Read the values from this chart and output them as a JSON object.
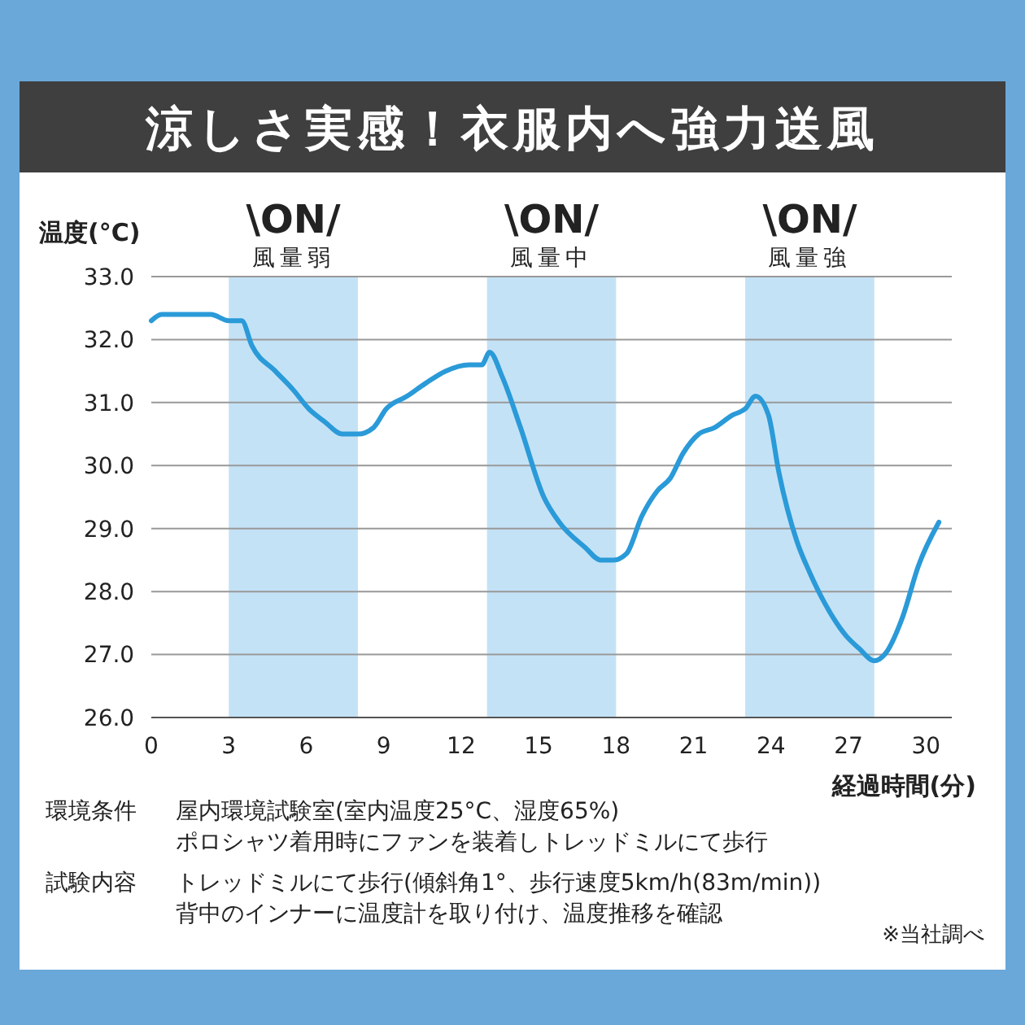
{
  "chart_data": {
    "type": "line",
    "title": "涼しさ実感！衣服内へ強力送風",
    "ylabel": "温度(°C)",
    "xlabel": "経過時間(分)",
    "x": [
      0,
      0.4,
      2.3,
      3.0,
      3.5,
      3.9,
      4.8,
      5.5,
      6.1,
      6.7,
      7.4,
      8.0,
      8.6,
      9.1,
      9.9,
      10.6,
      11.4,
      12.3,
      12.8,
      13.1,
      13.6,
      14.3,
      15.2,
      15.8,
      16.8,
      17.4,
      17.9,
      18.4,
      19.0,
      19.6,
      20.1,
      20.6,
      21.2,
      21.8,
      22.5,
      23.0,
      23.4,
      23.9,
      24.3,
      25.0,
      25.5,
      26.1,
      26.9,
      27.4,
      28.0,
      28.4,
      29.1,
      29.7,
      30.5
    ],
    "series": [
      {
        "color": "#2a9ad8",
        "values": [
          32.3,
          32.4,
          32.4,
          32.3,
          32.3,
          31.9,
          31.5,
          31.2,
          30.9,
          30.7,
          30.5,
          30.5,
          30.6,
          30.9,
          31.1,
          31.3,
          31.5,
          31.6,
          31.6,
          31.8,
          31.4,
          30.6,
          29.5,
          29.1,
          28.7,
          28.5,
          28.5,
          28.6,
          29.2,
          29.6,
          29.8,
          30.2,
          30.5,
          30.6,
          30.8,
          30.9,
          31.1,
          30.8,
          29.9,
          28.8,
          28.3,
          27.8,
          27.3,
          27.1,
          26.9,
          27.0,
          27.6,
          28.4,
          29.1
        ]
      }
    ],
    "xlim": [
      0,
      31
    ],
    "xticks": [
      0,
      3,
      6,
      9,
      12,
      15,
      18,
      21,
      24,
      27,
      30
    ],
    "ylim": [
      26,
      33
    ],
    "yticks": [
      {
        "value": 26,
        "label": "26.0"
      },
      {
        "value": 27,
        "label": "27.0"
      },
      {
        "value": 28,
        "label": "28.0"
      },
      {
        "value": 29,
        "label": "29.0"
      },
      {
        "value": 30,
        "label": "30.0"
      },
      {
        "value": 31,
        "label": "31.0"
      },
      {
        "value": 32,
        "label": "32.0"
      },
      {
        "value": 33,
        "label": "33.0"
      }
    ],
    "grid": "y",
    "marker": "none",
    "line_style": "solid",
    "bands": [
      {
        "axis": "x",
        "from": 3,
        "to": 8,
        "label": "\\ON/\n風量弱",
        "color": "#c4e2f6"
      },
      {
        "axis": "x",
        "from": 13,
        "to": 18,
        "label": "\\ON/\n風量中",
        "color": "#c4e2f6"
      },
      {
        "axis": "x",
        "from": 23,
        "to": 28,
        "label": "\\ON/\n風量強",
        "color": "#c4e2f6"
      }
    ],
    "annotations": [
      "環境条件",
      "屋内環境試験室(室内温度25°C、湿度65%)",
      "ポロシャツ着用時にファンを装着しトレッドミルにて歩行",
      "試験内容",
      "トレッドミルにて歩行(傾斜角1°、歩行速度5km/h(83m/min))",
      "背中のインナーに温度計を取り付け、温度推移を確認",
      "※当社調べ"
    ]
  }
}
